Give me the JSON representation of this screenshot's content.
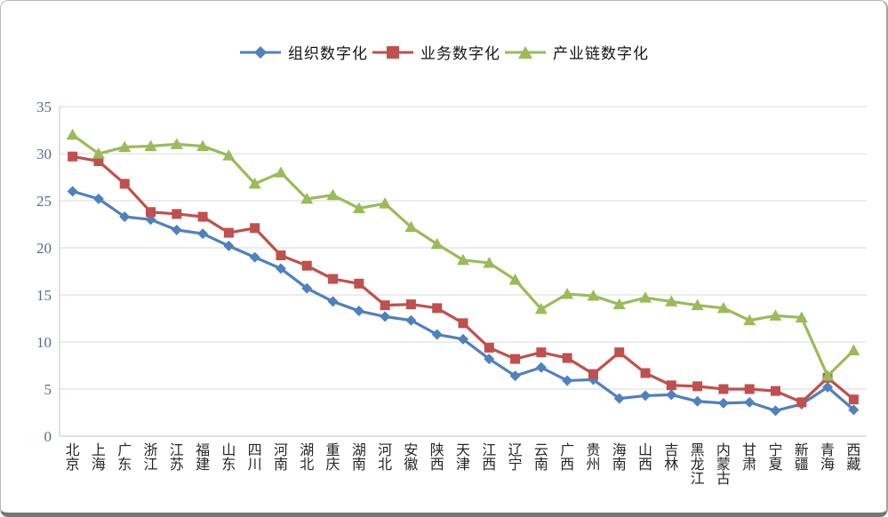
{
  "chart": {
    "background": "#FFFFFF",
    "frame_border_color": "#B9B9B9",
    "frame_bottom_edge_color": "#757575",
    "gridline_color": "#D9D9D9",
    "axis_line_color": "#C6C6C6",
    "y_label_color": "#5A6A8C",
    "x_label_color": "#262626"
  },
  "legend": {
    "items": [
      {
        "label": "组织数字化",
        "color": "#4F81BD",
        "marker": "diamond"
      },
      {
        "label": "业务数字化",
        "color": "#C0504D",
        "marker": "square"
      },
      {
        "label": "产业链数字化",
        "color": "#9BBB59",
        "marker": "triangle"
      }
    ]
  },
  "chart_data": {
    "type": "line",
    "title": "",
    "xlabel": "",
    "ylabel": "",
    "grid": true,
    "legend_position": "top",
    "ylim": [
      0,
      35
    ],
    "y_ticks": [
      0,
      5,
      10,
      15,
      20,
      25,
      30,
      35
    ],
    "categories": [
      "北京",
      "上海",
      "广东",
      "浙江",
      "江苏",
      "福建",
      "山东",
      "四川",
      "河南",
      "湖北",
      "重庆",
      "湖南",
      "河北",
      "安徽",
      "陕西",
      "天津",
      "江西",
      "辽宁",
      "云南",
      "广西",
      "贵州",
      "海南",
      "山西",
      "吉林",
      "黑龙江",
      "内蒙古",
      "甘肃",
      "宁夏",
      "新疆",
      "青海",
      "西藏"
    ],
    "series": [
      {
        "name": "组织数字化",
        "color": "#4F81BD",
        "marker": "diamond",
        "values": [
          26.0,
          25.2,
          23.3,
          23.0,
          21.9,
          21.5,
          20.2,
          19.0,
          17.8,
          15.7,
          14.3,
          13.3,
          12.7,
          12.3,
          10.8,
          10.3,
          8.2,
          6.4,
          7.3,
          5.9,
          6.0,
          4.0,
          4.3,
          4.4,
          3.7,
          3.5,
          3.6,
          2.7,
          3.4,
          5.2,
          2.8
        ]
      },
      {
        "name": "业务数字化",
        "color": "#C0504D",
        "marker": "square",
        "values": [
          29.7,
          29.2,
          26.8,
          23.8,
          23.6,
          23.3,
          21.6,
          22.1,
          19.2,
          18.1,
          16.7,
          16.2,
          13.9,
          14.0,
          13.6,
          12.0,
          9.4,
          8.2,
          8.9,
          8.3,
          6.6,
          8.9,
          6.7,
          5.4,
          5.3,
          5.0,
          5.0,
          4.8,
          3.6,
          6.2,
          3.9
        ]
      },
      {
        "name": "产业链数字化",
        "color": "#9BBB59",
        "marker": "triangle",
        "values": [
          32.0,
          30.0,
          30.7,
          30.8,
          31.0,
          30.8,
          29.8,
          26.8,
          28.0,
          25.2,
          25.6,
          24.2,
          24.7,
          22.2,
          20.4,
          18.7,
          18.4,
          16.6,
          13.5,
          15.1,
          14.9,
          14.0,
          14.7,
          14.3,
          13.9,
          13.6,
          12.3,
          12.8,
          12.6,
          6.4,
          9.1
        ]
      }
    ]
  }
}
